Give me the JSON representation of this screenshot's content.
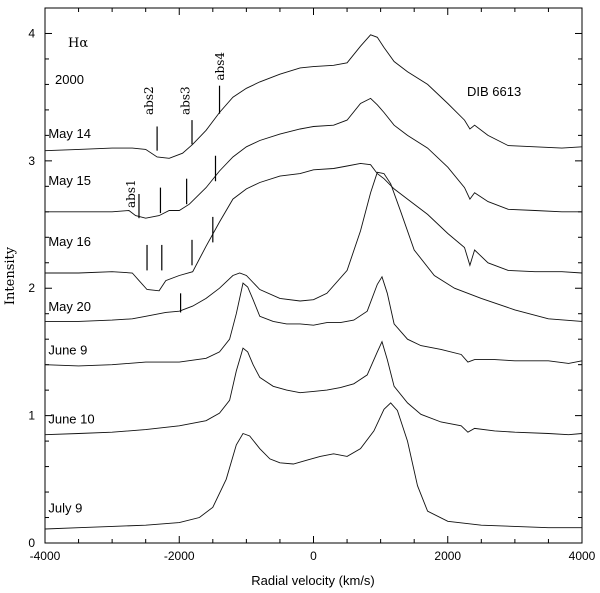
{
  "chart_data": {
    "type": "line",
    "title": "",
    "xlabel": "Radial velocity (km/s)",
    "ylabel": "Intensity",
    "xlim": [
      -4000,
      4000
    ],
    "ylim": [
      0,
      4.2
    ],
    "x_ticks": [
      -4000,
      -2000,
      0,
      2000,
      4000
    ],
    "x_tick_labels": [
      "-4000",
      "-2000",
      "0",
      "2000",
      "4000"
    ],
    "y_ticks": [
      0,
      1,
      2,
      3,
      4
    ],
    "y_tick_labels": [
      "0",
      "1",
      "2",
      "3",
      "4"
    ],
    "grid": false,
    "legend": "none",
    "annotations": {
      "halpha": "Hα",
      "year": "2000",
      "dib": "DIB 6613",
      "abs_labels": [
        {
          "text": "abs1",
          "x": -2660,
          "y": 2.63
        },
        {
          "text": "abs2",
          "x": -2390,
          "y": 3.36
        },
        {
          "text": "abs3",
          "x": -1850,
          "y": 3.36
        },
        {
          "text": "abs4",
          "x": -1330,
          "y": 3.63
        }
      ],
      "abs_ticks": [
        {
          "x": -2330,
          "y1": 3.08,
          "y2": 3.27
        },
        {
          "x": -1810,
          "y1": 3.13,
          "y2": 3.32
        },
        {
          "x": -1400,
          "y1": 3.37,
          "y2": 3.59
        },
        {
          "x": -2600,
          "y1": 2.55,
          "y2": 2.74
        },
        {
          "x": -2280,
          "y1": 2.59,
          "y2": 2.79
        },
        {
          "x": -1890,
          "y1": 2.66,
          "y2": 2.86
        },
        {
          "x": -1460,
          "y1": 2.84,
          "y2": 3.04
        },
        {
          "x": -2480,
          "y1": 2.14,
          "y2": 2.34
        },
        {
          "x": -2260,
          "y1": 2.14,
          "y2": 2.34
        },
        {
          "x": -1810,
          "y1": 2.18,
          "y2": 2.38
        },
        {
          "x": -1500,
          "y1": 2.36,
          "y2": 2.56
        },
        {
          "x": -1980,
          "y1": 1.81,
          "y2": 1.96
        }
      ]
    },
    "series": [
      {
        "label": "May 14",
        "label_x": -3950,
        "label_y": 3.18,
        "x": [
          -4000,
          -3500,
          -3000,
          -2700,
          -2500,
          -2330,
          -2150,
          -1950,
          -1800,
          -1600,
          -1400,
          -1200,
          -1000,
          -800,
          -500,
          -200,
          0,
          300,
          500,
          700,
          850,
          950,
          1050,
          1200,
          1400,
          1700,
          2000,
          2250,
          2330,
          2400,
          2600,
          2900,
          3300,
          3700,
          4000
        ],
        "y": [
          3.08,
          3.09,
          3.1,
          3.1,
          3.09,
          3.03,
          3.02,
          3.06,
          3.13,
          3.24,
          3.38,
          3.5,
          3.57,
          3.62,
          3.68,
          3.73,
          3.74,
          3.75,
          3.77,
          3.9,
          3.99,
          3.97,
          3.89,
          3.78,
          3.7,
          3.6,
          3.45,
          3.32,
          3.25,
          3.28,
          3.2,
          3.12,
          3.11,
          3.1,
          3.11
        ]
      },
      {
        "label": "May 15",
        "label_x": -3950,
        "label_y": 2.81,
        "x": [
          -4000,
          -3500,
          -3000,
          -2750,
          -2650,
          -2500,
          -2300,
          -2150,
          -2000,
          -1850,
          -1600,
          -1400,
          -1200,
          -1000,
          -800,
          -500,
          -200,
          0,
          300,
          500,
          700,
          850,
          950,
          1050,
          1200,
          1400,
          1700,
          2000,
          2250,
          2330,
          2400,
          2600,
          2900,
          3300,
          3700,
          4000
        ],
        "y": [
          2.6,
          2.6,
          2.6,
          2.61,
          2.57,
          2.55,
          2.57,
          2.61,
          2.61,
          2.66,
          2.79,
          2.92,
          3.03,
          3.11,
          3.16,
          3.21,
          3.25,
          3.27,
          3.28,
          3.32,
          3.45,
          3.49,
          3.44,
          3.38,
          3.28,
          3.2,
          3.1,
          2.95,
          2.79,
          2.7,
          2.75,
          2.68,
          2.62,
          2.61,
          2.6,
          2.6
        ]
      },
      {
        "label": "May 16",
        "label_x": -3950,
        "label_y": 2.33,
        "x": [
          -4000,
          -3500,
          -3000,
          -2700,
          -2600,
          -2480,
          -2300,
          -2200,
          -2000,
          -1800,
          -1600,
          -1400,
          -1200,
          -1000,
          -800,
          -500,
          -200,
          0,
          300,
          500,
          700,
          850,
          950,
          1050,
          1200,
          1400,
          1700,
          2000,
          2250,
          2330,
          2400,
          2600,
          2900,
          3300,
          3700,
          4000
        ],
        "y": [
          2.12,
          2.12,
          2.13,
          2.12,
          2.06,
          1.99,
          1.98,
          2.06,
          2.1,
          2.13,
          2.33,
          2.52,
          2.7,
          2.78,
          2.83,
          2.88,
          2.9,
          2.93,
          2.94,
          2.96,
          2.98,
          2.97,
          2.9,
          2.86,
          2.78,
          2.7,
          2.58,
          2.43,
          2.32,
          2.18,
          2.3,
          2.2,
          2.14,
          2.13,
          2.13,
          2.12
        ]
      },
      {
        "label": "May 20",
        "label_x": -3950,
        "label_y": 1.82,
        "x": [
          -4000,
          -3500,
          -3000,
          -2700,
          -2500,
          -2200,
          -2000,
          -1800,
          -1600,
          -1400,
          -1200,
          -1100,
          -1000,
          -800,
          -500,
          -200,
          0,
          200,
          500,
          700,
          850,
          950,
          1050,
          1150,
          1300,
          1500,
          1800,
          2100,
          2500,
          3000,
          3500,
          4000
        ],
        "y": [
          1.74,
          1.74,
          1.75,
          1.76,
          1.78,
          1.81,
          1.82,
          1.86,
          1.92,
          2.0,
          2.1,
          2.12,
          2.1,
          1.99,
          1.92,
          1.9,
          1.91,
          1.96,
          2.14,
          2.45,
          2.75,
          2.91,
          2.9,
          2.82,
          2.6,
          2.3,
          2.1,
          2.0,
          1.92,
          1.83,
          1.76,
          1.74
        ]
      },
      {
        "label": "June 9",
        "label_x": -3950,
        "label_y": 1.48,
        "x": [
          -4000,
          -3500,
          -3000,
          -2500,
          -2000,
          -1600,
          -1400,
          -1250,
          -1150,
          -1050,
          -980,
          -900,
          -800,
          -600,
          -400,
          -200,
          0,
          200,
          400,
          600,
          800,
          950,
          1020,
          1100,
          1200,
          1400,
          1600,
          1900,
          2200,
          2300,
          2400,
          2700,
          3000,
          3500,
          3800,
          4000
        ],
        "y": [
          1.4,
          1.39,
          1.4,
          1.42,
          1.42,
          1.45,
          1.5,
          1.6,
          1.8,
          2.04,
          2.01,
          1.91,
          1.78,
          1.74,
          1.72,
          1.72,
          1.71,
          1.73,
          1.73,
          1.75,
          1.82,
          2.03,
          2.09,
          1.96,
          1.72,
          1.6,
          1.55,
          1.52,
          1.48,
          1.42,
          1.44,
          1.44,
          1.43,
          1.43,
          1.41,
          1.43
        ]
      },
      {
        "label": "June 10",
        "label_x": -3950,
        "label_y": 0.94,
        "x": [
          -4000,
          -3500,
          -3000,
          -2500,
          -2000,
          -1600,
          -1400,
          -1250,
          -1150,
          -1050,
          -980,
          -900,
          -800,
          -600,
          -400,
          -200,
          0,
          200,
          400,
          600,
          800,
          950,
          1020,
          1100,
          1200,
          1400,
          1600,
          1900,
          2200,
          2300,
          2400,
          2700,
          3000,
          3500,
          3800,
          4000
        ],
        "y": [
          0.85,
          0.86,
          0.87,
          0.89,
          0.92,
          0.96,
          1.02,
          1.12,
          1.35,
          1.53,
          1.5,
          1.4,
          1.3,
          1.23,
          1.2,
          1.18,
          1.19,
          1.2,
          1.22,
          1.25,
          1.32,
          1.5,
          1.58,
          1.44,
          1.23,
          1.1,
          1.01,
          0.95,
          0.92,
          0.87,
          0.9,
          0.88,
          0.87,
          0.86,
          0.85,
          0.86
        ]
      },
      {
        "label": "July 9",
        "label_x": -3950,
        "label_y": 0.24,
        "x": [
          -4000,
          -3500,
          -3000,
          -2500,
          -2000,
          -1700,
          -1500,
          -1300,
          -1150,
          -1050,
          -950,
          -800,
          -650,
          -500,
          -300,
          -100,
          100,
          300,
          500,
          700,
          900,
          1050,
          1150,
          1250,
          1400,
          1550,
          1700,
          2000,
          2500,
          3000,
          3500,
          4000
        ],
        "y": [
          0.11,
          0.12,
          0.13,
          0.14,
          0.16,
          0.2,
          0.28,
          0.5,
          0.77,
          0.86,
          0.84,
          0.74,
          0.66,
          0.63,
          0.62,
          0.65,
          0.68,
          0.7,
          0.68,
          0.74,
          0.88,
          1.05,
          1.1,
          1.04,
          0.8,
          0.45,
          0.25,
          0.17,
          0.14,
          0.13,
          0.12,
          0.12
        ]
      }
    ]
  }
}
